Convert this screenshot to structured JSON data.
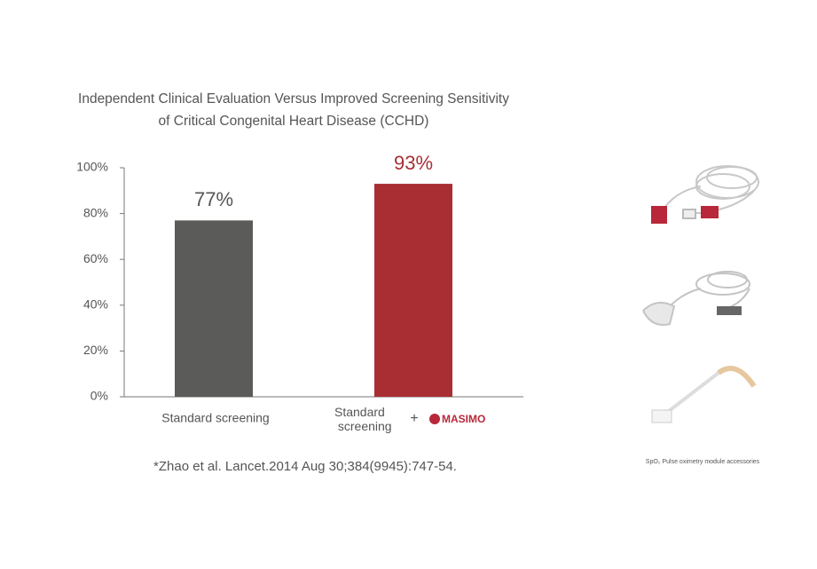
{
  "chart_data": {
    "type": "bar",
    "title": "Independent Clinical Evaluation Versus Improved Screening Sensitivity",
    "subtitle": "of Critical Congenital Heart Disease (CCHD)",
    "categories": [
      "Standard screening",
      "Standard screening"
    ],
    "plus": "+",
    "partner_logo": "MASIMO",
    "values": [
      77,
      93
    ],
    "value_labels": [
      "77%",
      "93%"
    ],
    "colors": [
      "#5b5b59",
      "#a82e34"
    ],
    "label_colors": [
      "#555555",
      "#a82e34"
    ],
    "ylim": [
      0,
      100
    ],
    "yticks": [
      {
        "value": 0,
        "label": "0%"
      },
      {
        "value": 20,
        "label": "20%"
      },
      {
        "value": 40,
        "label": "40%"
      },
      {
        "value": 60,
        "label": "60%"
      },
      {
        "value": 80,
        "label": "80%"
      },
      {
        "value": 100,
        "label": "100%"
      }
    ],
    "grid": false,
    "footnote": "*Zhao et al. Lancet.2014 Aug 30;384(9945):747-54.",
    "caption": "SpO₂ Pulse oximetry module accessories"
  }
}
